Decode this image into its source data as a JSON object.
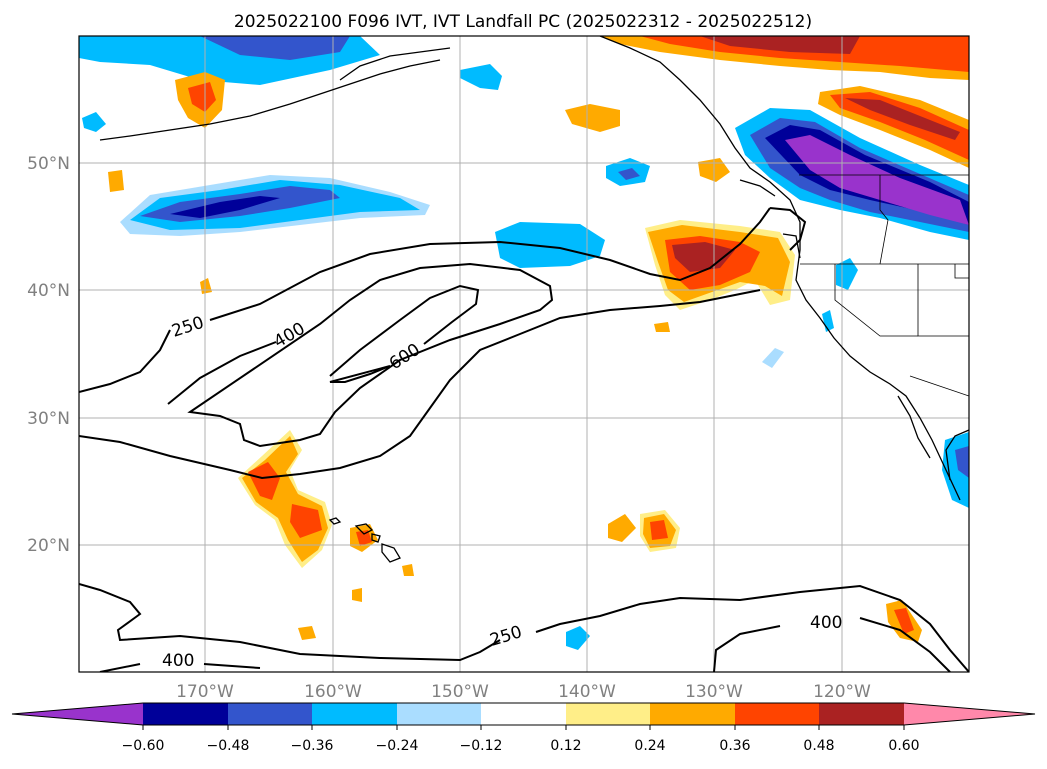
{
  "title": "2025022100 F096 IVT, IVT Landfall PC (2025022312 - 2025022512)",
  "lat_labels": [
    "50°N",
    "40°N",
    "30°N",
    "20°N"
  ],
  "lon_labels": [
    "170°W",
    "160°W",
    "150°W",
    "140°W",
    "130°W",
    "120°W"
  ],
  "contour_labels": {
    "c250_left": "250",
    "c400_mid": "400",
    "c600": "600",
    "c250_south": "250",
    "c400_south": "400",
    "c400_sw": "400"
  },
  "colorbar": {
    "colors": {
      "under": "#9933cc",
      "levels": [
        "#000099",
        "#3355cc",
        "#00bbff",
        "#aaddff",
        "#ffffff",
        "#ffee88",
        "#ffaa00",
        "#ff4400",
        "#aa2222"
      ],
      "over": "#ff88aa"
    },
    "ticks": [
      "−0.60",
      "−0.48",
      "−0.36",
      "−0.24",
      "−0.12",
      "0.12",
      "0.24",
      "0.36",
      "0.48",
      "0.60"
    ]
  }
}
